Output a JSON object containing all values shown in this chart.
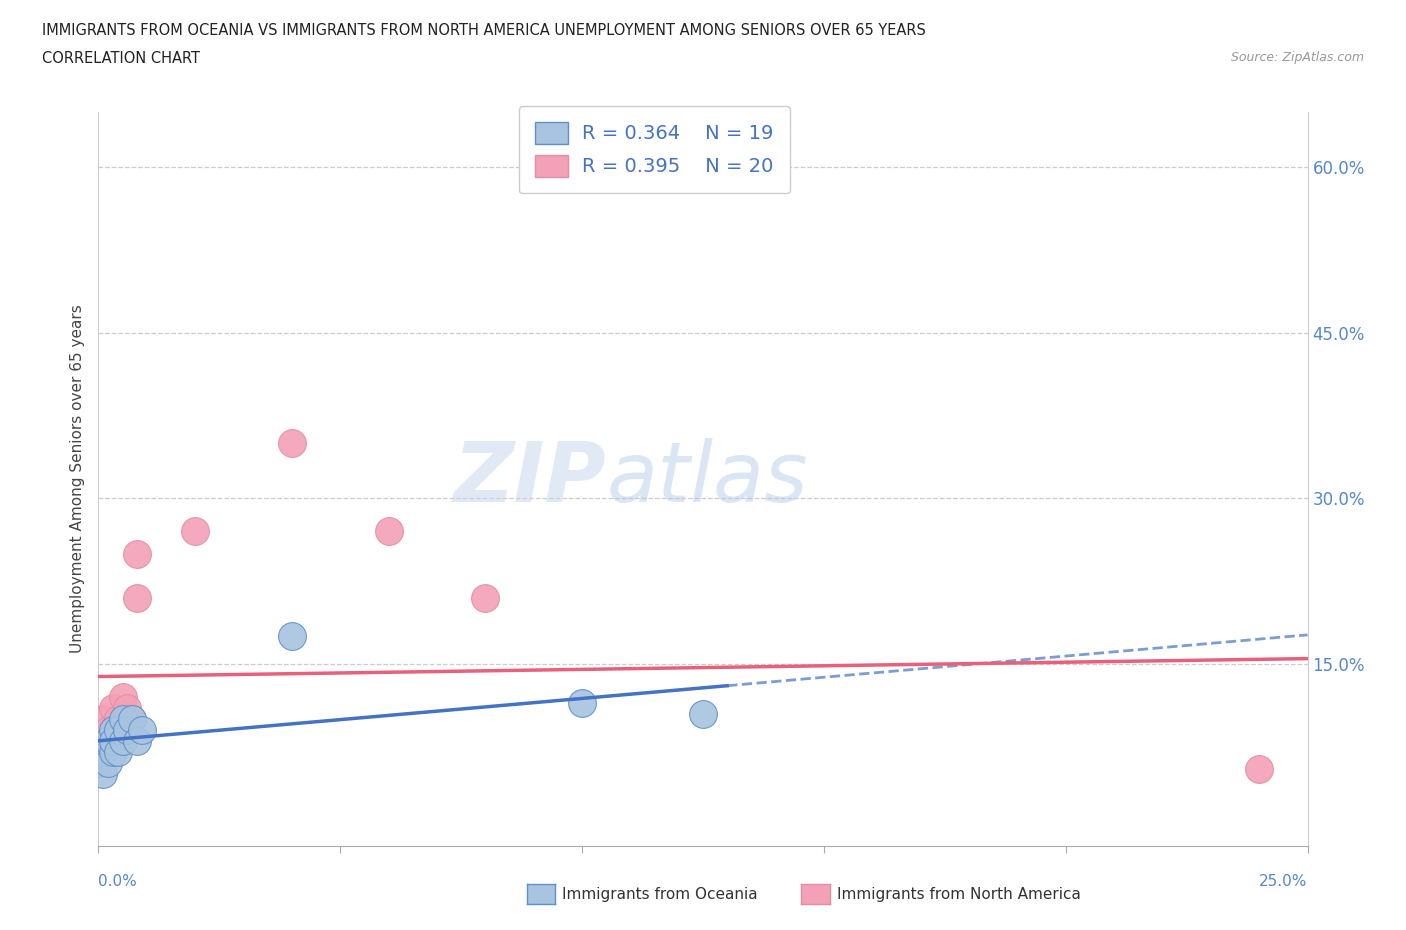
{
  "title_line1": "IMMIGRANTS FROM OCEANIA VS IMMIGRANTS FROM NORTH AMERICA UNEMPLOYMENT AMONG SENIORS OVER 65 YEARS",
  "title_line2": "CORRELATION CHART",
  "source": "Source: ZipAtlas.com",
  "ylabel": "Unemployment Among Seniors over 65 years",
  "yticks": [
    0.0,
    0.15,
    0.3,
    0.45,
    0.6
  ],
  "ytick_labels": [
    "",
    "15.0%",
    "30.0%",
    "45.0%",
    "60.0%"
  ],
  "xlim": [
    0.0,
    0.25
  ],
  "ylim": [
    -0.015,
    0.65
  ],
  "color_oceania": "#a8c4e0",
  "color_north_america": "#f4a0b8",
  "color_oceania_line": "#4472c4",
  "color_north_america_line": "#e8607a",
  "watermark_part1": "ZIP",
  "watermark_part2": "atlas",
  "oceania_x": [
    0.0,
    0.001,
    0.001,
    0.002,
    0.002,
    0.003,
    0.003,
    0.003,
    0.004,
    0.004,
    0.005,
    0.005,
    0.006,
    0.007,
    0.008,
    0.009,
    0.04,
    0.1,
    0.125
  ],
  "oceania_y": [
    0.06,
    0.05,
    0.07,
    0.06,
    0.08,
    0.07,
    0.09,
    0.08,
    0.07,
    0.09,
    0.08,
    0.1,
    0.09,
    0.1,
    0.08,
    0.09,
    0.175,
    0.115,
    0.105
  ],
  "north_america_x": [
    0.0,
    0.0,
    0.001,
    0.001,
    0.002,
    0.002,
    0.003,
    0.003,
    0.004,
    0.005,
    0.005,
    0.006,
    0.007,
    0.008,
    0.008,
    0.02,
    0.04,
    0.06,
    0.08,
    0.24
  ],
  "north_america_y": [
    0.06,
    0.08,
    0.07,
    0.1,
    0.08,
    0.09,
    0.08,
    0.11,
    0.1,
    0.09,
    0.12,
    0.11,
    0.1,
    0.21,
    0.25,
    0.27,
    0.35,
    0.27,
    0.21,
    0.055
  ]
}
